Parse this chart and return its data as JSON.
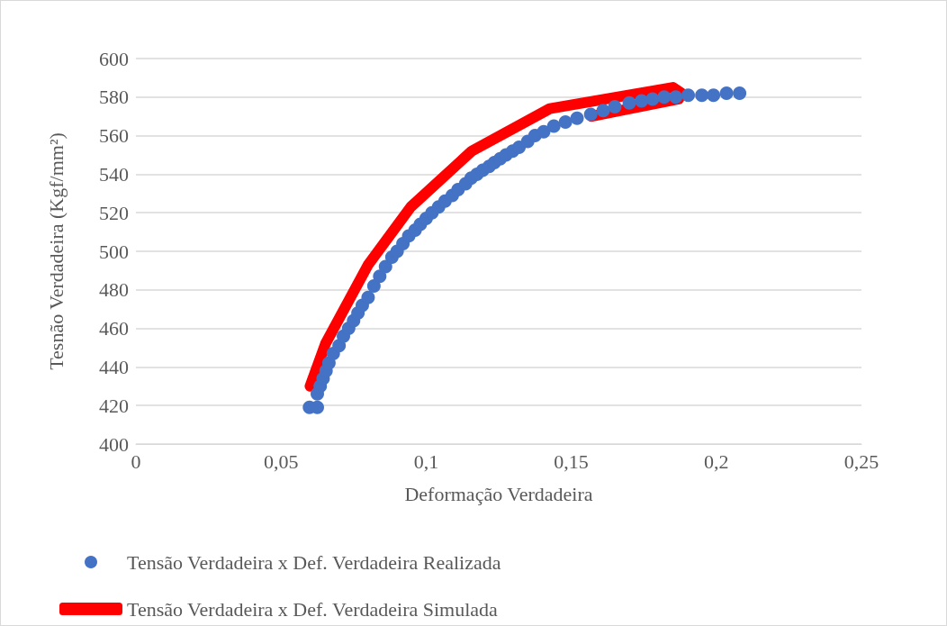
{
  "chart_data": {
    "type": "scatter",
    "xlabel": "Deformação Verdadeira",
    "ylabel": "Tesnão Verdadeira (Kgf/mm²)",
    "xlim": [
      0,
      0.25
    ],
    "xticks": [
      {
        "value": 0,
        "label": "0"
      },
      {
        "value": 0.05,
        "label": "0,05"
      },
      {
        "value": 0.1,
        "label": "0,1"
      },
      {
        "value": 0.15,
        "label": "0,15"
      },
      {
        "value": 0.2,
        "label": "0,2"
      },
      {
        "value": 0.25,
        "label": "0,25"
      }
    ],
    "ylim": [
      400,
      600
    ],
    "yticks": [
      400,
      420,
      440,
      460,
      480,
      500,
      520,
      540,
      560,
      580,
      600
    ],
    "grid": "y",
    "legend": "bottom",
    "series": [
      {
        "name": "Tensão Verdadeira x Def. Verdadeira Realizada",
        "marker": "circle",
        "color": "#4472c4",
        "x": [
          0.0598,
          0.0625,
          0.0625,
          0.0635,
          0.0645,
          0.0655,
          0.0665,
          0.068,
          0.07,
          0.0715,
          0.0733,
          0.075,
          0.0765,
          0.078,
          0.08,
          0.082,
          0.084,
          0.086,
          0.0882,
          0.09,
          0.092,
          0.094,
          0.0962,
          0.098,
          0.1,
          0.102,
          0.1043,
          0.1065,
          0.109,
          0.111,
          0.1136,
          0.1155,
          0.1175,
          0.1195,
          0.1217,
          0.1235,
          0.1255,
          0.1275,
          0.1298,
          0.132,
          0.135,
          0.1375,
          0.1405,
          0.144,
          0.148,
          0.152,
          0.1567,
          0.161,
          0.165,
          0.17,
          0.1742,
          0.178,
          0.182,
          0.186,
          0.1903,
          0.195,
          0.199,
          0.2035,
          0.208
        ],
        "values": [
          419,
          419,
          426,
          430,
          434,
          438,
          442,
          447,
          451,
          456,
          460,
          464,
          468,
          472,
          476,
          482,
          487,
          492,
          497,
          500,
          504,
          508,
          511,
          514,
          517,
          520,
          523,
          526,
          529,
          532,
          535,
          538,
          540,
          542,
          544,
          546,
          548,
          550,
          552,
          554,
          557,
          560,
          562,
          565,
          567,
          569,
          571,
          573,
          575,
          577,
          578,
          579,
          580,
          580,
          581,
          581,
          581,
          582,
          582
        ]
      },
      {
        "name": "Tensão Verdadeira x Def. Verdadeira Simulada",
        "type": "line",
        "marker": "none",
        "color": "#ff0000",
        "x": [
          0.06,
          0.0653,
          0.08,
          0.0947,
          0.1157,
          0.1426,
          0.185,
          0.188,
          0.187,
          0.157
        ],
        "values": [
          430,
          452,
          493,
          523,
          552,
          574,
          585,
          582,
          579,
          570
        ]
      }
    ]
  }
}
